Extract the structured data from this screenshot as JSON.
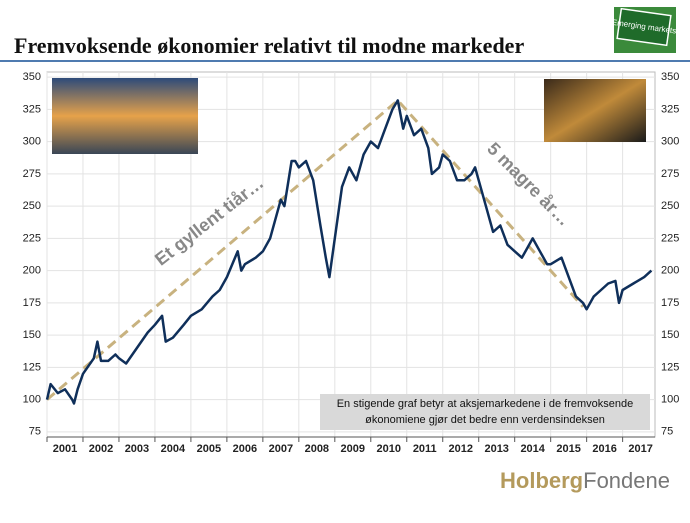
{
  "chart_data": {
    "type": "line",
    "title": "Fremvoksende økonomier relativt til modne markeder",
    "badge": "Emerging markets",
    "annotations": [
      "Et gyllent tiår…",
      "5 magre år…"
    ],
    "note": [
      "En stigende graf betyr at aksjemarkedene i de fremvoksende",
      "økonomiene gjør det bedre enn verdensindeksen"
    ],
    "brand": [
      "Holberg",
      "Fondene"
    ],
    "xlim": [
      2001,
      2017.9
    ],
    "xticks": [
      2001,
      2002,
      2003,
      2004,
      2005,
      2006,
      2007,
      2008,
      2009,
      2010,
      2011,
      2012,
      2013,
      2014,
      2015,
      2016,
      2017
    ],
    "ylim": [
      71,
      354
    ],
    "yticks": [
      75,
      100,
      125,
      150,
      175,
      200,
      225,
      250,
      275,
      300,
      325,
      350
    ],
    "grid": true,
    "series": [
      {
        "color": "#0f2f5a",
        "x": [
          2001.0,
          2001.1,
          2001.3,
          2001.5,
          2001.7,
          2001.75,
          2001.85,
          2002.0,
          2002.3,
          2002.4,
          2002.5,
          2002.7,
          2002.9,
          2003.0,
          2003.2,
          2003.5,
          2003.8,
          2004.0,
          2004.2,
          2004.3,
          2004.5,
          2004.8,
          2005.0,
          2005.3,
          2005.6,
          2005.8,
          2006.0,
          2006.3,
          2006.4,
          2006.5,
          2006.8,
          2007.0,
          2007.2,
          2007.5,
          2007.6,
          2007.8,
          2007.9,
          2008.0,
          2008.2,
          2008.4,
          2008.6,
          2008.75,
          2008.85,
          2009.0,
          2009.2,
          2009.4,
          2009.6,
          2009.8,
          2010.0,
          2010.2,
          2010.4,
          2010.6,
          2010.75,
          2010.9,
          2011.0,
          2011.2,
          2011.4,
          2011.6,
          2011.7,
          2011.9,
          2012.0,
          2012.2,
          2012.4,
          2012.6,
          2012.8,
          2012.9,
          2013.0,
          2013.2,
          2013.4,
          2013.6,
          2013.8,
          2014.0,
          2014.2,
          2014.5,
          2014.7,
          2014.9,
          2015.0,
          2015.3,
          2015.5,
          2015.7,
          2015.9,
          2016.0,
          2016.2,
          2016.4,
          2016.6,
          2016.8,
          2016.9,
          2017.0,
          2017.3,
          2017.6,
          2017.8
        ],
        "values": [
          100,
          112,
          105,
          108,
          100,
          97,
          108,
          120,
          132,
          145,
          130,
          130,
          135,
          132,
          128,
          140,
          152,
          158,
          165,
          145,
          148,
          158,
          165,
          170,
          180,
          185,
          195,
          215,
          200,
          205,
          210,
          215,
          225,
          255,
          250,
          285,
          285,
          280,
          285,
          270,
          235,
          210,
          195,
          225,
          265,
          280,
          270,
          290,
          300,
          295,
          310,
          325,
          332,
          310,
          320,
          305,
          310,
          295,
          275,
          280,
          290,
          285,
          270,
          270,
          275,
          280,
          270,
          250,
          230,
          235,
          220,
          215,
          210,
          225,
          215,
          205,
          205,
          210,
          195,
          180,
          175,
          170,
          180,
          185,
          190,
          192,
          175,
          185,
          190,
          195,
          200
        ]
      }
    ],
    "trendline": {
      "color": "#c8b27f",
      "x": [
        2001,
        2010.75,
        2015.9
      ],
      "values": [
        100,
        332,
        172
      ]
    }
  }
}
